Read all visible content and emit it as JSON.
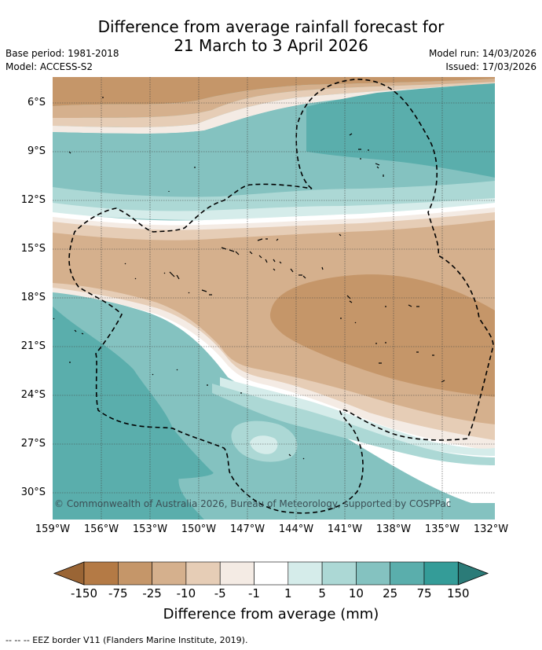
{
  "title_line1": "Difference from average rainfall forecast for",
  "title_line2": "21 March to 3 April 2026",
  "base_period": "Base period: 1981-2018",
  "model": "Model: ACCESS-S2",
  "model_run": "Model run: 14/03/2026",
  "issued": "Issued: 17/03/2026",
  "lat_labels": [
    "6°S",
    "9°S",
    "12°S",
    "15°S",
    "18°S",
    "21°S",
    "24°S",
    "27°S",
    "30°S"
  ],
  "lon_labels": [
    "159°W",
    "156°W",
    "153°W",
    "150°W",
    "147°W",
    "144°W",
    "141°W",
    "138°W",
    "135°W",
    "132°W"
  ],
  "copyright": "© Commonwealth of Australia 2026, Bureau of Meteorology, supported by COSPPac",
  "colorbar": {
    "title": "Difference from average (mm)",
    "ticks": [
      "-150",
      "-75",
      "-25",
      "-10",
      "-5",
      "-1",
      "1",
      "5",
      "10",
      "25",
      "75",
      "150"
    ],
    "colors": [
      "#9a6535",
      "#b47a45",
      "#c59669",
      "#d5b08d",
      "#e6cdb6",
      "#f4ebe4",
      "#ffffff",
      "#d5ecea",
      "#acd8d5",
      "#84c2c0",
      "#5aaeac",
      "#349c98",
      "#2b7b78"
    ]
  },
  "footer": "-- -- -- EEZ border V11 (Flanders Marine Institute, 2019)."
}
